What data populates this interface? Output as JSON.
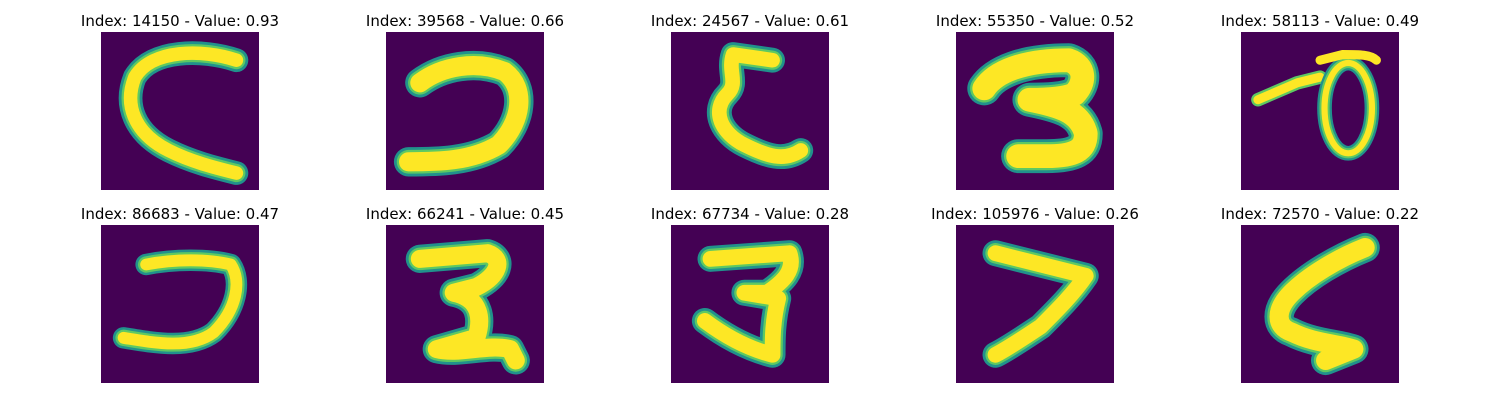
{
  "panels": [
    {
      "index": "14150",
      "value": "0.93",
      "title": "Index: 14150 - Value: 0.93"
    },
    {
      "index": "39568",
      "value": "0.66",
      "title": "Index: 39568 - Value: 0.66"
    },
    {
      "index": "24567",
      "value": "0.61",
      "title": "Index: 24567 - Value: 0.61"
    },
    {
      "index": "55350",
      "value": "0.52",
      "title": "Index: 55350 - Value: 0.52"
    },
    {
      "index": "58113",
      "value": "0.49",
      "title": "Index: 58113 - Value: 0.49"
    },
    {
      "index": "86683",
      "value": "0.47",
      "title": "Index: 86683 - Value: 0.47"
    },
    {
      "index": "66241",
      "value": "0.45",
      "title": "Index: 66241 - Value: 0.45"
    },
    {
      "index": "67734",
      "value": "0.28",
      "title": "Index: 67734 - Value: 0.28"
    },
    {
      "index": "105976",
      "value": "0.26",
      "title": "Index: 105976 - Value: 0.26"
    },
    {
      "index": "72570",
      "value": "0.22",
      "title": "Index: 72570 - Value: 0.22"
    }
  ],
  "colors": {
    "background_dark": "#440154",
    "edge_teal": "#21918c",
    "edge_green": "#5ec962",
    "stroke_yellow": "#fde725"
  }
}
